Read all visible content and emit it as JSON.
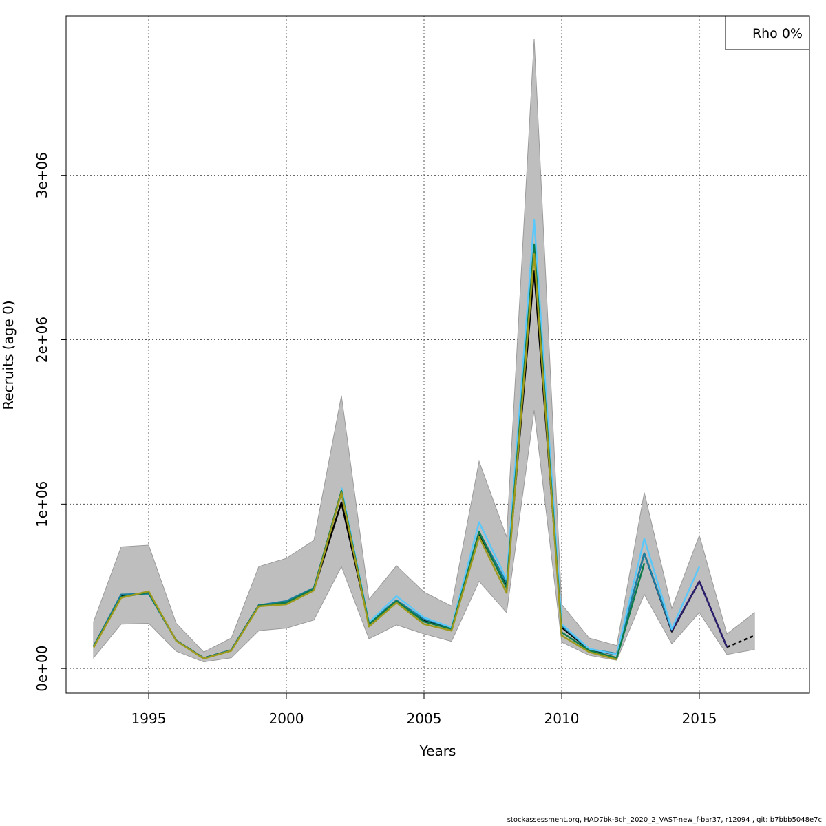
{
  "footer_text": "stockassessment.org, HAD7bk-Bch_2020_2_VAST-new_f-bar37, r12094 , git: b7bbb5048e7c",
  "chart_data": {
    "type": "line",
    "title": "",
    "xlabel": "Years",
    "ylabel": "Recruits (age 0)",
    "xlim": [
      1992,
      2019
    ],
    "ylim": [
      -150000,
      3970000
    ],
    "x_ticks": [
      1995,
      2000,
      2005,
      2010,
      2015
    ],
    "x_tick_labels": [
      "1995",
      "2000",
      "2005",
      "2010",
      "2015"
    ],
    "y_ticks": [
      0,
      1000000,
      2000000,
      3000000
    ],
    "y_tick_labels": [
      "0e+00",
      "1e+06",
      "2e+06",
      "3e+06"
    ],
    "grid": true,
    "legend": {
      "position": "top-right",
      "entries": [
        "Rho 0%"
      ]
    },
    "confidence_band": {
      "color": "#bebebe",
      "x": [
        1993,
        1994,
        1995,
        1996,
        1997,
        1998,
        1999,
        2000,
        2001,
        2002,
        2003,
        2004,
        2005,
        2006,
        2007,
        2008,
        2009,
        2010,
        2011,
        2012,
        2013,
        2014,
        2015,
        2016,
        2017
      ],
      "lower": [
        65000,
        270000,
        275000,
        105000,
        40000,
        65000,
        230000,
        245000,
        295000,
        620000,
        180000,
        265000,
        210000,
        165000,
        530000,
        340000,
        1570000,
        160000,
        80000,
        50000,
        450000,
        150000,
        340000,
        85000,
        115000
      ],
      "upper": [
        285000,
        740000,
        750000,
        275000,
        100000,
        185000,
        620000,
        670000,
        780000,
        1660000,
        420000,
        625000,
        465000,
        380000,
        1260000,
        800000,
        3830000,
        390000,
        185000,
        140000,
        1070000,
        365000,
        810000,
        210000,
        340000
      ]
    },
    "series": [
      {
        "color": "#000000",
        "dashed": false,
        "x": [
          1993,
          1994,
          1995,
          1996,
          1997,
          1998,
          1999,
          2000,
          2001,
          2002,
          2003,
          2004,
          2005,
          2006,
          2007,
          2008,
          2009,
          2010,
          2011,
          2012,
          2013,
          2014,
          2015,
          2016
        ],
        "values": [
          135000,
          445000,
          460000,
          170000,
          63000,
          112000,
          385000,
          400000,
          480000,
          1010000,
          270000,
          410000,
          290000,
          245000,
          820000,
          500000,
          2420000,
          250000,
          115000,
          85000,
          700000,
          225000,
          530000,
          130000
        ]
      },
      {
        "color": "#000000",
        "dashed": true,
        "x": [
          2016,
          2017
        ],
        "values": [
          130000,
          200000
        ]
      },
      {
        "color": "#2c1f6e",
        "dashed": false,
        "x": [
          2013,
          2014,
          2015,
          2016
        ],
        "values": [
          700000,
          230000,
          530000,
          130000
        ]
      },
      {
        "color": "#1b7fa0",
        "dashed": false,
        "x": [
          1993,
          1994,
          1995,
          1996,
          1997,
          1998,
          1999,
          2000,
          2001,
          2002,
          2003,
          2004,
          2005,
          2006,
          2007,
          2008,
          2009,
          2010,
          2011,
          2012,
          2013,
          2014
        ],
        "values": [
          135000,
          450000,
          455000,
          170000,
          63000,
          112000,
          385000,
          410000,
          490000,
          1070000,
          280000,
          415000,
          300000,
          250000,
          830000,
          520000,
          2560000,
          260000,
          118000,
          90000,
          700000,
          235000
        ]
      },
      {
        "color": "#5ac8fa",
        "dashed": false,
        "x": [
          2002,
          2003,
          2004,
          2005,
          2006,
          2007,
          2008,
          2009,
          2010,
          2011,
          2012,
          2013,
          2014,
          2015
        ],
        "values": [
          1100000,
          280000,
          440000,
          310000,
          250000,
          890000,
          540000,
          2730000,
          270000,
          120000,
          85000,
          790000,
          240000,
          620000
        ]
      },
      {
        "color": "#0e7a4a",
        "dashed": false,
        "x": [
          1993,
          1994,
          1995,
          1996,
          1997,
          1998,
          1999,
          2000,
          2001,
          2002,
          2003,
          2004,
          2005,
          2006,
          2007,
          2008,
          2009,
          2010,
          2011,
          2012,
          2013
        ],
        "values": [
          133000,
          435000,
          462000,
          170000,
          62000,
          110000,
          382000,
          400000,
          485000,
          1080000,
          270000,
          410000,
          285000,
          240000,
          830000,
          490000,
          2580000,
          220000,
          110000,
          65000,
          640000
        ]
      },
      {
        "color": "#9e9a1e",
        "dashed": false,
        "x": [
          1993,
          1994,
          1995,
          1996,
          1997,
          1998,
          1999,
          2000,
          2001,
          2002,
          2003,
          2004,
          2005,
          2006,
          2007,
          2008,
          2009,
          2010,
          2011,
          2012
        ],
        "values": [
          128000,
          430000,
          470000,
          168000,
          60000,
          108000,
          378000,
          390000,
          475000,
          1070000,
          255000,
          400000,
          270000,
          230000,
          800000,
          460000,
          2520000,
          200000,
          100000,
          55000
        ]
      }
    ]
  }
}
